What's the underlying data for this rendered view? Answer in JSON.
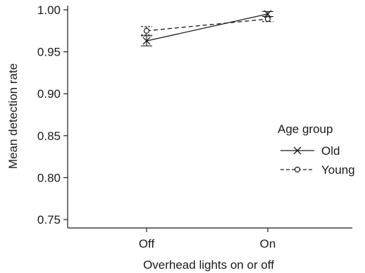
{
  "chart_data": {
    "type": "line",
    "title": "",
    "xlabel": "Overhead lights on or off",
    "ylabel": "Mean detection rate",
    "categories": [
      "Off",
      "On"
    ],
    "ylim": [
      0.74,
      1.005
    ],
    "yticks": [
      0.75,
      0.8,
      0.85,
      0.9,
      0.95,
      1.0
    ],
    "ytick_labels": [
      "0.75",
      "0.80",
      "0.85",
      "0.90",
      "0.95",
      "1.00"
    ],
    "grid": false,
    "legend": {
      "title": "Age group",
      "position": "right"
    },
    "series": [
      {
        "name": "Old",
        "values": [
          0.963,
          0.995
        ],
        "error": [
          [
            0.957,
            0.969
          ],
          [
            0.992,
            0.998
          ]
        ],
        "marker": "x",
        "line": "solid",
        "color": "#1a1a1a"
      },
      {
        "name": "Young",
        "values": [
          0.975,
          0.989
        ],
        "error": [
          [
            0.97,
            0.98
          ],
          [
            0.986,
            0.992
          ]
        ],
        "marker": "circle",
        "line": "dashed",
        "color": "#1a1a1a"
      }
    ]
  }
}
